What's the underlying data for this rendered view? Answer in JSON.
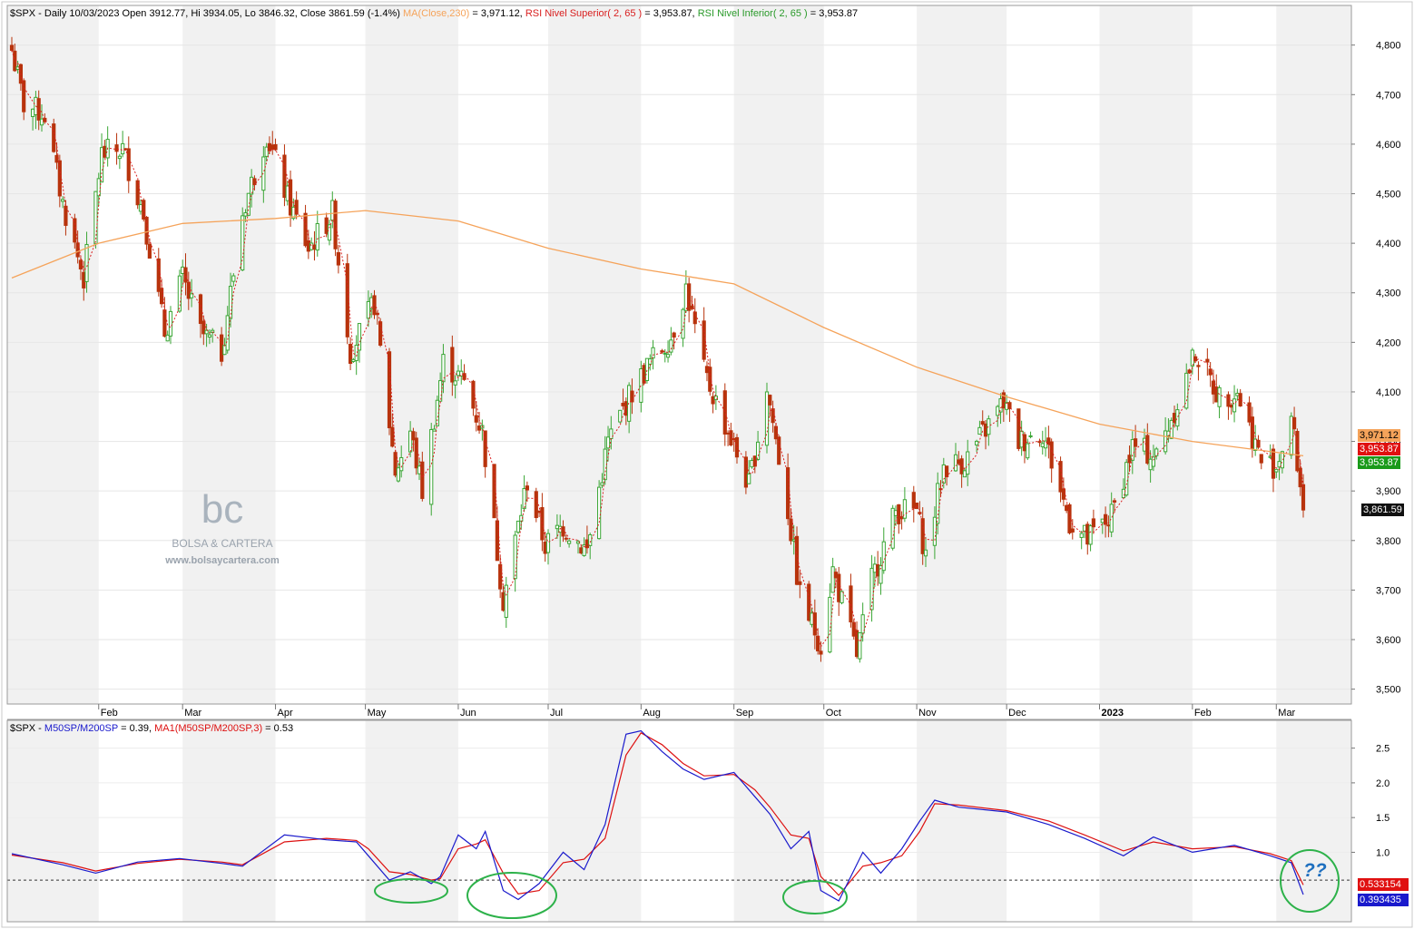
{
  "upper_header": {
    "symbol_info": "$SPX - Daily 10/03/2023 Open 3912.77, Hi 3934.05, Lo 3846.32, Close 3861.59 (-1.4%)",
    "ma_label": "MA(Close,230)",
    "ma_value": " = 3,971.12,",
    "rsi_sup_label": "RSI Nivel Superior( 2, 65 )",
    "rsi_sup_value": " = 3,953.87,",
    "rsi_inf_label": "RSI Nivel Inferior( 2, 65 )",
    "rsi_inf_value": " = 3,953.87"
  },
  "lower_header": {
    "symbol": "$SPX - ",
    "ratio_label": "M50SP/M200SP",
    "ratio_value": " = 0.39, ",
    "ma_label": "MA1(M50SP/M200SP,3)",
    "ma_value": " = 0.53"
  },
  "price_tags": {
    "ma": "3,971.12",
    "rsi_sup": "3,953.87",
    "rsi_inf": "3,953.87",
    "close": "3,861.59"
  },
  "indicator_tags": {
    "ma1": "0.533154",
    "ratio": "0.393435"
  },
  "watermark": {
    "logo": "bc",
    "name": "BOLSA & CARTERA",
    "url": "www.bolsaycartera.com"
  },
  "annotation": "??",
  "colors": {
    "up": "#3aa635",
    "down": "#b8330c",
    "ma230": "#f5a35a",
    "rsi_dots": "#d92020",
    "ratio_line": "#1a1acc",
    "ratio_ma": "#dd1111",
    "ellipse": "#2db24a",
    "annotation": "#1e6fbf"
  },
  "chart_data": [
    {
      "type": "candlestick",
      "title": "$SPX - Daily",
      "x_labels": [
        "Feb",
        "Mar",
        "Apr",
        "May",
        "Jun",
        "Jul",
        "Aug",
        "Sep",
        "Oct",
        "Nov",
        "Dec",
        "2023",
        "Feb",
        "Mar"
      ],
      "x_range": [
        "2022-01-03",
        "2023-03-10"
      ],
      "y_ticks": [
        3500,
        3600,
        3700,
        3800,
        3900,
        4000,
        4100,
        4200,
        4300,
        4400,
        4500,
        4600,
        4700,
        4800
      ],
      "y_tick_labels": [
        "3,500",
        "3,600",
        "3,700",
        "3,800",
        "3,900",
        "4,000",
        "4,100",
        "4,200",
        "4,300",
        "4,400",
        "4,500",
        "4,600",
        "4,700",
        "4,800"
      ],
      "ylim": [
        3470,
        4880
      ],
      "close_path": {
        "dates": [
          "2022-01-03",
          "2022-01-07",
          "2022-01-14",
          "2022-01-20",
          "2022-01-27",
          "2022-02-02",
          "2022-02-09",
          "2022-02-16",
          "2022-02-23",
          "2022-03-01",
          "2022-03-07",
          "2022-03-14",
          "2022-03-21",
          "2022-03-29",
          "2022-04-05",
          "2022-04-12",
          "2022-04-20",
          "2022-04-26",
          "2022-05-04",
          "2022-05-11",
          "2022-05-16",
          "2022-05-20",
          "2022-05-27",
          "2022-06-03",
          "2022-06-09",
          "2022-06-16",
          "2022-06-24",
          "2022-06-30",
          "2022-07-06",
          "2022-07-14",
          "2022-07-21",
          "2022-07-28",
          "2022-08-04",
          "2022-08-11",
          "2022-08-16",
          "2022-08-22",
          "2022-08-30",
          "2022-09-06",
          "2022-09-12",
          "2022-09-19",
          "2022-09-23",
          "2022-09-30",
          "2022-10-04",
          "2022-10-12",
          "2022-10-17",
          "2022-10-25",
          "2022-11-01",
          "2022-11-04",
          "2022-11-10",
          "2022-11-17",
          "2022-11-30",
          "2022-12-05",
          "2022-12-13",
          "2022-12-22",
          "2022-12-28",
          "2023-01-05",
          "2023-01-12",
          "2023-01-20",
          "2023-01-27",
          "2023-02-02",
          "2023-02-10",
          "2023-02-16",
          "2023-02-24",
          "2023-03-01",
          "2023-03-06",
          "2023-03-10"
        ],
        "close": [
          4790,
          4680,
          4660,
          4480,
          4330,
          4580,
          4590,
          4460,
          4220,
          4330,
          4220,
          4180,
          4460,
          4620,
          4490,
          4390,
          4460,
          4180,
          4280,
          3940,
          4020,
          3900,
          4160,
          4120,
          4020,
          3680,
          3920,
          3790,
          3830,
          3780,
          4000,
          4090,
          4160,
          4210,
          4310,
          4140,
          4020,
          3910,
          4110,
          3860,
          3690,
          3590,
          3740,
          3570,
          3720,
          3860,
          3860,
          3770,
          3950,
          3960,
          4080,
          4000,
          4020,
          3840,
          3800,
          3850,
          3990,
          3970,
          4080,
          4180,
          4090,
          4100,
          3960,
          3950,
          4050,
          3862
        ]
      },
      "series": [
        {
          "name": "MA(Close,230)",
          "dates": [
            "2022-01-03",
            "2022-02-01",
            "2022-03-01",
            "2022-04-01",
            "2022-05-01",
            "2022-06-01",
            "2022-07-01",
            "2022-08-01",
            "2022-09-01",
            "2022-10-01",
            "2022-11-01",
            "2022-12-01",
            "2023-01-01",
            "2023-02-01",
            "2023-03-10"
          ],
          "values": [
            4330,
            4400,
            4440,
            4450,
            4466,
            4445,
            4390,
            4348,
            4318,
            4230,
            4150,
            4090,
            4035,
            4000,
            3971
          ]
        },
        {
          "name": "RSI Nivel Superior( 2, 65 )",
          "value": 3953.87
        },
        {
          "name": "RSI Nivel Inferior( 2, 65 )",
          "value": 3953.87
        }
      ],
      "last": {
        "open": 3912.77,
        "high": 3934.05,
        "low": 3846.32,
        "close": 3861.59,
        "change_pct": -1.4
      }
    },
    {
      "type": "line",
      "title": "$SPX - M50SP/M200SP",
      "y_ticks": [
        1.0,
        1.5,
        2.0,
        2.5
      ],
      "y_tick_labels": [
        "1.0",
        "1.5",
        "2.0",
        "2.5"
      ],
      "ylim": [
        0.0,
        2.9
      ],
      "reference_line": 0.6,
      "series": [
        {
          "name": "M50SP/M200SP",
          "dates": [
            "2022-01-03",
            "2022-01-20",
            "2022-01-31",
            "2022-02-14",
            "2022-02-28",
            "2022-03-14",
            "2022-03-21",
            "2022-04-04",
            "2022-04-18",
            "2022-04-28",
            "2022-05-02",
            "2022-05-09",
            "2022-05-16",
            "2022-05-23",
            "2022-05-26",
            "2022-06-01",
            "2022-06-07",
            "2022-06-10",
            "2022-06-16",
            "2022-06-21",
            "2022-06-28",
            "2022-07-06",
            "2022-07-13",
            "2022-07-20",
            "2022-07-27",
            "2022-08-01",
            "2022-08-08",
            "2022-08-15",
            "2022-08-22",
            "2022-09-01",
            "2022-09-08",
            "2022-09-13",
            "2022-09-20",
            "2022-09-26",
            "2022-09-30",
            "2022-10-06",
            "2022-10-14",
            "2022-10-20",
            "2022-10-27",
            "2022-11-02",
            "2022-11-07",
            "2022-11-15",
            "2022-12-01",
            "2022-12-15",
            "2022-12-27",
            "2023-01-09",
            "2023-01-19",
            "2023-02-01",
            "2023-02-15",
            "2023-02-27",
            "2023-03-06",
            "2023-03-10"
          ],
          "values": [
            0.98,
            0.82,
            0.7,
            0.86,
            0.91,
            0.84,
            0.8,
            1.25,
            1.18,
            1.15,
            0.95,
            0.6,
            0.72,
            0.55,
            0.65,
            1.25,
            1.05,
            1.3,
            0.45,
            0.32,
            0.55,
            1.0,
            0.75,
            1.4,
            2.7,
            2.75,
            2.45,
            2.2,
            2.05,
            2.15,
            1.8,
            1.55,
            1.05,
            1.3,
            0.45,
            0.3,
            1.0,
            0.7,
            1.05,
            1.45,
            1.75,
            1.65,
            1.58,
            1.4,
            1.2,
            0.95,
            1.22,
            1.0,
            1.1,
            0.95,
            0.85,
            0.39
          ]
        },
        {
          "name": "MA1(M50SP/M200SP,3)",
          "dates": [
            "2022-01-03",
            "2022-01-20",
            "2022-01-31",
            "2022-02-14",
            "2022-02-28",
            "2022-03-14",
            "2022-03-21",
            "2022-04-04",
            "2022-04-18",
            "2022-04-28",
            "2022-05-02",
            "2022-05-09",
            "2022-05-16",
            "2022-05-23",
            "2022-05-26",
            "2022-06-01",
            "2022-06-07",
            "2022-06-10",
            "2022-06-16",
            "2022-06-21",
            "2022-06-28",
            "2022-07-06",
            "2022-07-13",
            "2022-07-20",
            "2022-07-27",
            "2022-08-01",
            "2022-08-08",
            "2022-08-15",
            "2022-08-22",
            "2022-09-01",
            "2022-09-08",
            "2022-09-13",
            "2022-09-20",
            "2022-09-26",
            "2022-09-30",
            "2022-10-06",
            "2022-10-14",
            "2022-10-20",
            "2022-10-27",
            "2022-11-02",
            "2022-11-07",
            "2022-11-15",
            "2022-12-01",
            "2022-12-15",
            "2022-12-27",
            "2023-01-09",
            "2023-01-19",
            "2023-02-01",
            "2023-02-15",
            "2023-02-27",
            "2023-03-06",
            "2023-03-10"
          ],
          "values": [
            0.96,
            0.85,
            0.73,
            0.84,
            0.9,
            0.86,
            0.82,
            1.15,
            1.2,
            1.17,
            1.05,
            0.72,
            0.68,
            0.6,
            0.62,
            1.05,
            1.12,
            1.18,
            0.7,
            0.4,
            0.45,
            0.85,
            0.9,
            1.2,
            2.4,
            2.72,
            2.55,
            2.28,
            2.1,
            2.12,
            1.9,
            1.65,
            1.25,
            1.2,
            0.65,
            0.38,
            0.8,
            0.85,
            0.95,
            1.3,
            1.7,
            1.68,
            1.6,
            1.45,
            1.25,
            1.02,
            1.15,
            1.05,
            1.08,
            0.98,
            0.88,
            0.53
          ]
        }
      ]
    }
  ]
}
